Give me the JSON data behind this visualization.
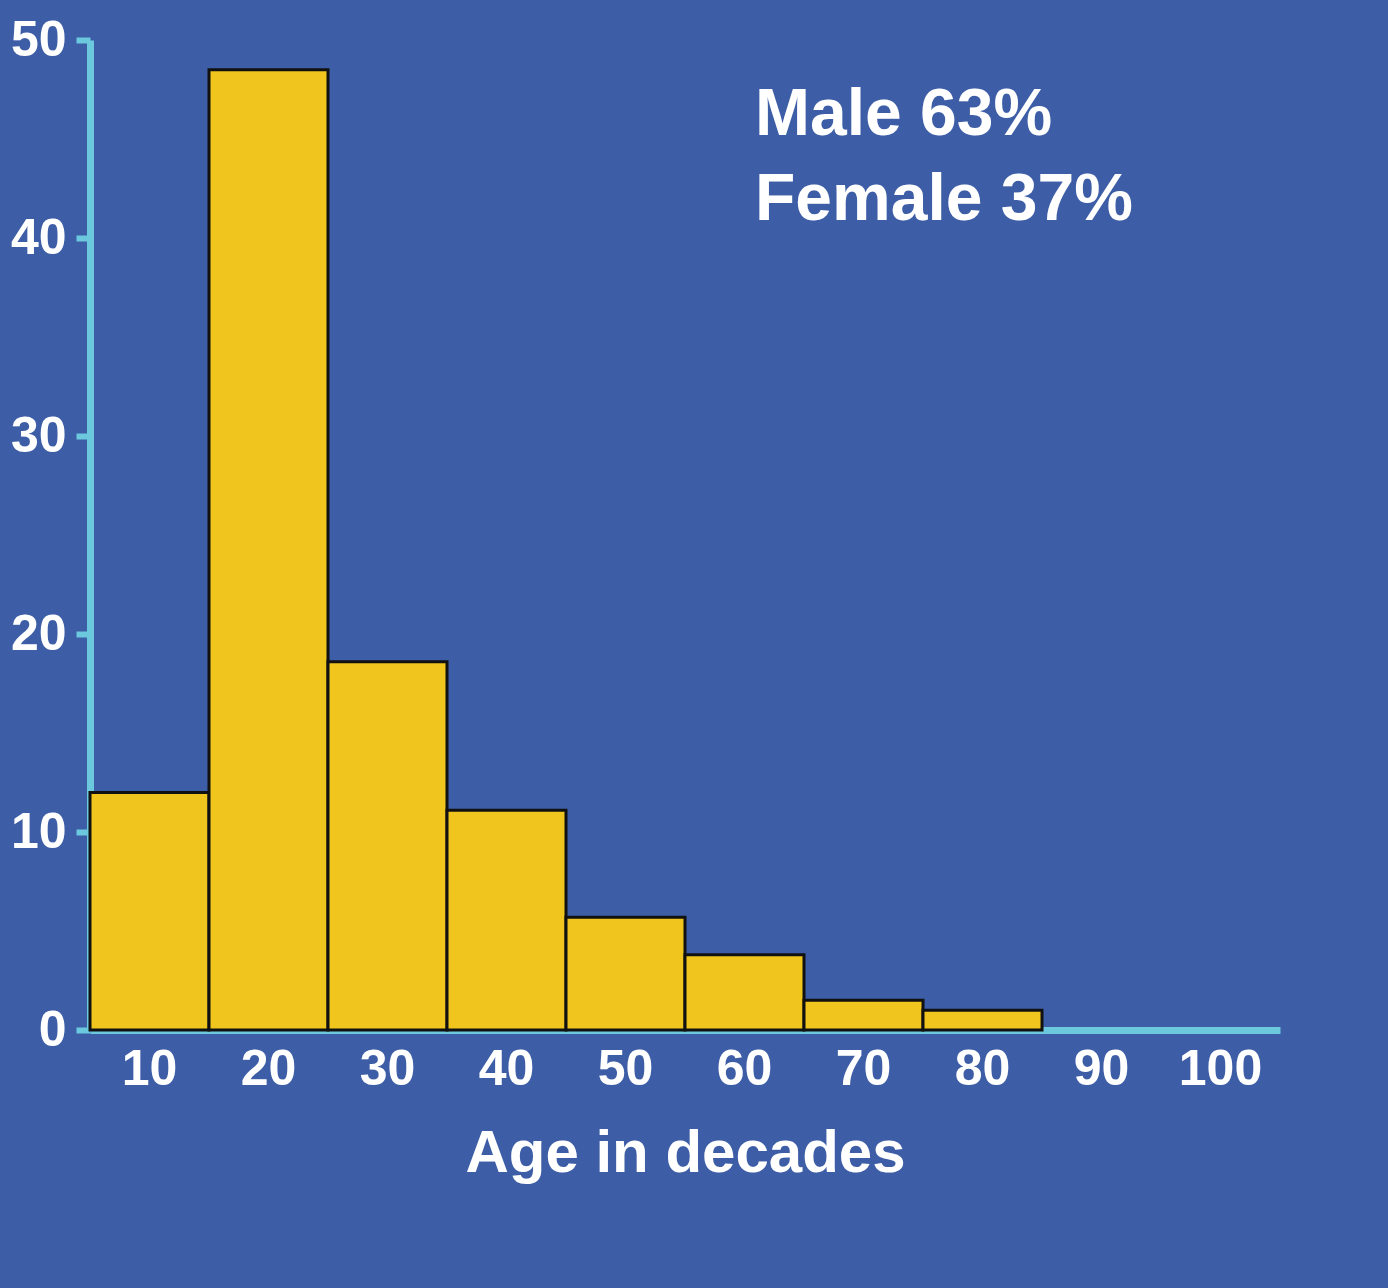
{
  "chart_data": {
    "type": "bar",
    "xlabel": "Age in decades",
    "categories": [
      "10",
      "20",
      "30",
      "40",
      "50",
      "60",
      "70",
      "80",
      "90",
      "100"
    ],
    "values": [
      12,
      48.5,
      18.6,
      11.1,
      5.7,
      3.8,
      1.5,
      1,
      null,
      null
    ],
    "color": "#f0c61e",
    "ylim": [
      0,
      50
    ],
    "yticks": [
      0,
      10,
      20,
      30,
      40,
      50
    ],
    "grid": false,
    "annotations": [
      "Male 63%",
      "Female 37%"
    ]
  }
}
